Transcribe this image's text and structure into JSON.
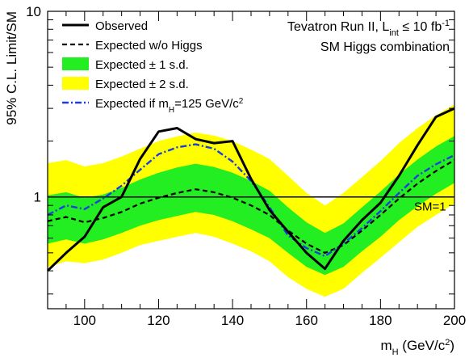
{
  "chart_data": {
    "type": "line",
    "header": {
      "line1_prefix": "Tevatron Run II, L",
      "line1_sub": "int",
      "line1_mid": " ≤ 10 fb",
      "line1_sup": "-1",
      "line2": "SM Higgs combination"
    },
    "xlabel": {
      "main": "m",
      "sub": "H",
      "unit_a": " (GeV/c",
      "unit_sup": "2",
      "unit_b": ")"
    },
    "ylabel": "95% C.L. Limit/SM",
    "xlim": [
      90,
      200
    ],
    "ylim": [
      0.25,
      10
    ],
    "yscale": "log",
    "x_ticks": [
      100,
      120,
      140,
      160,
      180,
      200
    ],
    "y_ticks": [
      1,
      10
    ],
    "reference_line": {
      "value": 1,
      "label": "SM=1"
    },
    "x": [
      90,
      95,
      100,
      105,
      110,
      115,
      120,
      125,
      130,
      135,
      140,
      145,
      150,
      155,
      160,
      165,
      170,
      175,
      180,
      185,
      190,
      195,
      200
    ],
    "series": [
      {
        "name": "Observed",
        "style": "solid",
        "color": "#000000",
        "values": [
          0.4,
          0.5,
          0.61,
          0.88,
          1.0,
          1.6,
          2.25,
          2.35,
          2.05,
          1.95,
          2.0,
          1.25,
          0.85,
          0.65,
          0.5,
          0.41,
          0.58,
          0.75,
          0.93,
          1.3,
          1.9,
          2.7,
          3.0
        ]
      },
      {
        "name": "Expected w/o Higgs",
        "style": "dashed",
        "color": "#000000",
        "values": [
          0.74,
          0.78,
          0.73,
          0.77,
          0.83,
          0.92,
          0.99,
          1.05,
          1.1,
          1.06,
          0.99,
          0.9,
          0.8,
          0.66,
          0.56,
          0.5,
          0.55,
          0.66,
          0.8,
          0.98,
          1.18,
          1.38,
          1.58
        ]
      },
      {
        "name": "Expected if m",
        "name_sub": "H",
        "name_suffix": "=125 GeV/c",
        "name_sup": "2",
        "style": "dashdot",
        "color": "#1a3fdc",
        "values": [
          0.8,
          0.9,
          0.86,
          0.98,
          1.15,
          1.4,
          1.7,
          1.85,
          1.92,
          1.82,
          1.55,
          1.22,
          0.88,
          0.62,
          0.53,
          0.48,
          0.56,
          0.68,
          0.84,
          1.05,
          1.3,
          1.5,
          1.68
        ]
      }
    ],
    "bands": [
      {
        "name": "Expected ± 2 s.d.",
        "color": "#ffff00",
        "lower": [
          0.42,
          0.45,
          0.44,
          0.46,
          0.5,
          0.55,
          0.58,
          0.61,
          0.64,
          0.61,
          0.56,
          0.51,
          0.45,
          0.37,
          0.32,
          0.29,
          0.32,
          0.39,
          0.47,
          0.57,
          0.69,
          0.8,
          0.92
        ],
        "upper": [
          1.52,
          1.58,
          1.46,
          1.52,
          1.65,
          1.82,
          2.0,
          2.12,
          2.22,
          2.14,
          2.0,
          1.8,
          1.6,
          1.3,
          1.05,
          0.9,
          1.05,
          1.28,
          1.56,
          1.95,
          2.35,
          2.75,
          3.15
        ]
      },
      {
        "name": "Expected ± 1 s.d.",
        "color": "#22ee22",
        "lower": [
          0.56,
          0.59,
          0.56,
          0.59,
          0.64,
          0.7,
          0.75,
          0.79,
          0.83,
          0.8,
          0.74,
          0.67,
          0.6,
          0.5,
          0.42,
          0.38,
          0.42,
          0.51,
          0.61,
          0.75,
          0.89,
          1.04,
          1.19
        ],
        "upper": [
          1.02,
          1.06,
          0.99,
          1.03,
          1.12,
          1.24,
          1.35,
          1.44,
          1.51,
          1.45,
          1.35,
          1.22,
          1.08,
          0.88,
          0.73,
          0.64,
          0.72,
          0.88,
          1.07,
          1.32,
          1.59,
          1.87,
          2.13
        ]
      }
    ],
    "legend": {
      "placement": "top-left",
      "entries": [
        "Observed",
        "Expected w/o Higgs",
        "Expected ± 1 s.d.",
        "Expected ± 2 s.d.",
        "Expected if mH=125 GeV/c2"
      ]
    }
  }
}
